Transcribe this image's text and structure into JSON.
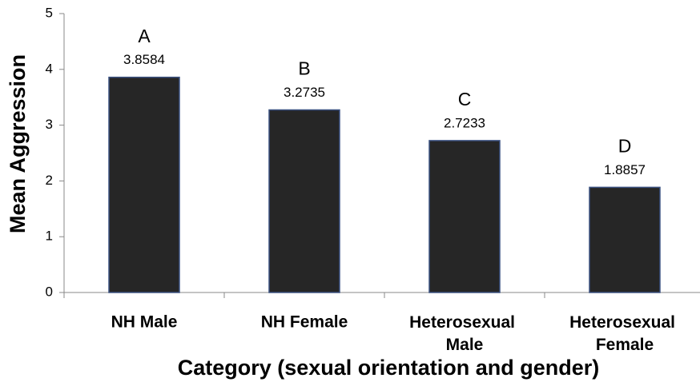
{
  "chart_data": {
    "type": "bar",
    "categories": [
      "NH Male",
      "NH Female",
      "Heterosexual Male",
      "Heterosexual Female"
    ],
    "values": [
      3.8584,
      3.2735,
      2.7233,
      1.8857
    ],
    "letters": [
      "A",
      "B",
      "C",
      "D"
    ],
    "color": "#262626",
    "xlabel": "Category (sexual orientation and gender)",
    "ylabel": "Mean Aggression",
    "ylim": [
      0,
      5
    ],
    "yticks": [
      0,
      1,
      2,
      3,
      4,
      5
    ],
    "grid": false
  }
}
